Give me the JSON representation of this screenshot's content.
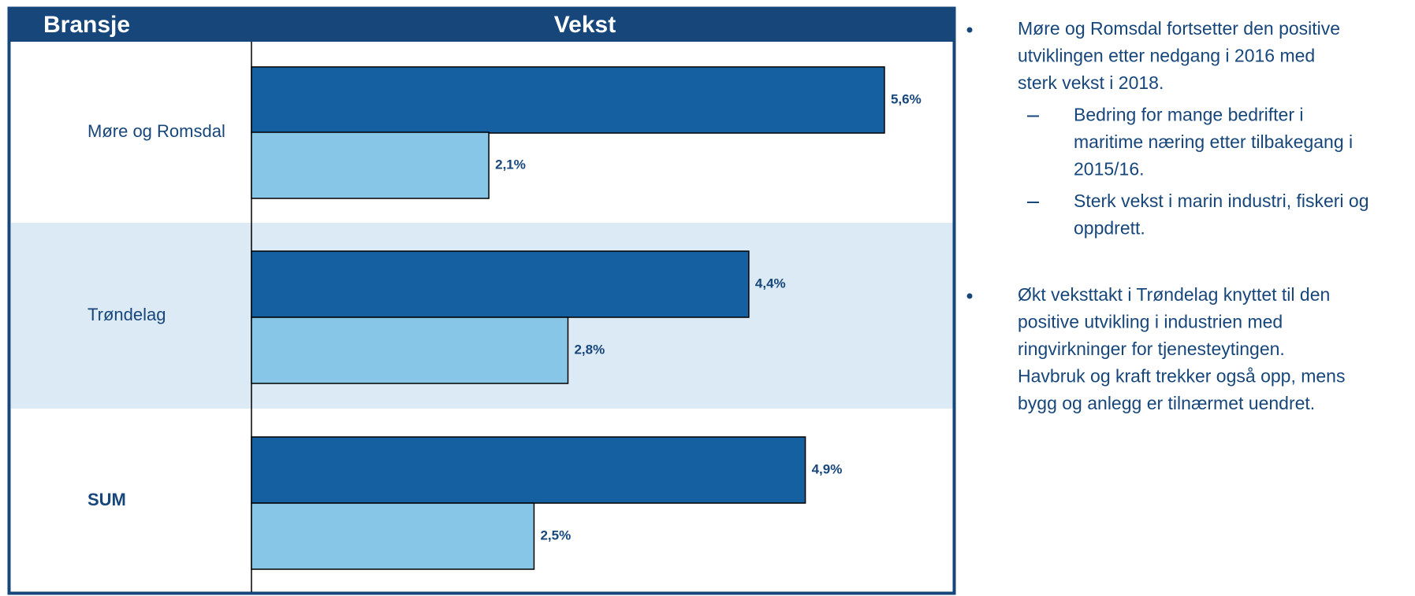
{
  "chart_data": {
    "type": "hbar",
    "header": {
      "category_column": "Bransje",
      "value_column": "Vekst"
    },
    "categories": [
      "Møre og Romsdal",
      "Trøndelag",
      "SUM"
    ],
    "series": [
      {
        "color": "#1560a0",
        "values": [
          5.6,
          4.4,
          4.9
        ],
        "value_labels": [
          "5,6%",
          "4,4%",
          "4,9%"
        ]
      },
      {
        "color": "#87c6e6",
        "values": [
          2.1,
          2.8,
          2.5
        ],
        "value_labels": [
          "2,1%",
          "2,8%",
          "2,5%"
        ]
      }
    ],
    "xlim": [
      0,
      6.2
    ]
  },
  "notes": [
    {
      "lines": [
        "Møre og Romsdal fortsetter den positive",
        "utviklingen etter nedgang i 2016 med",
        "sterk vekst i 2018."
      ],
      "sub": [
        {
          "lines": [
            "Bedring for mange bedrifter i",
            "maritime næring etter tilbakegang i",
            "2015/16."
          ]
        },
        {
          "lines": [
            "Sterk vekst i marin industri, fiskeri og",
            "oppdrett."
          ]
        }
      ]
    },
    {
      "lines": [
        "Økt veksttakt i Trøndelag knyttet til den",
        "positive utvikling i industrien med",
        "ringvirkninger for tjenesteytingen.",
        "Havbruk og kraft trekker også opp, mens",
        "bygg og anlegg er tilnærmet uendret."
      ],
      "sub": []
    }
  ]
}
